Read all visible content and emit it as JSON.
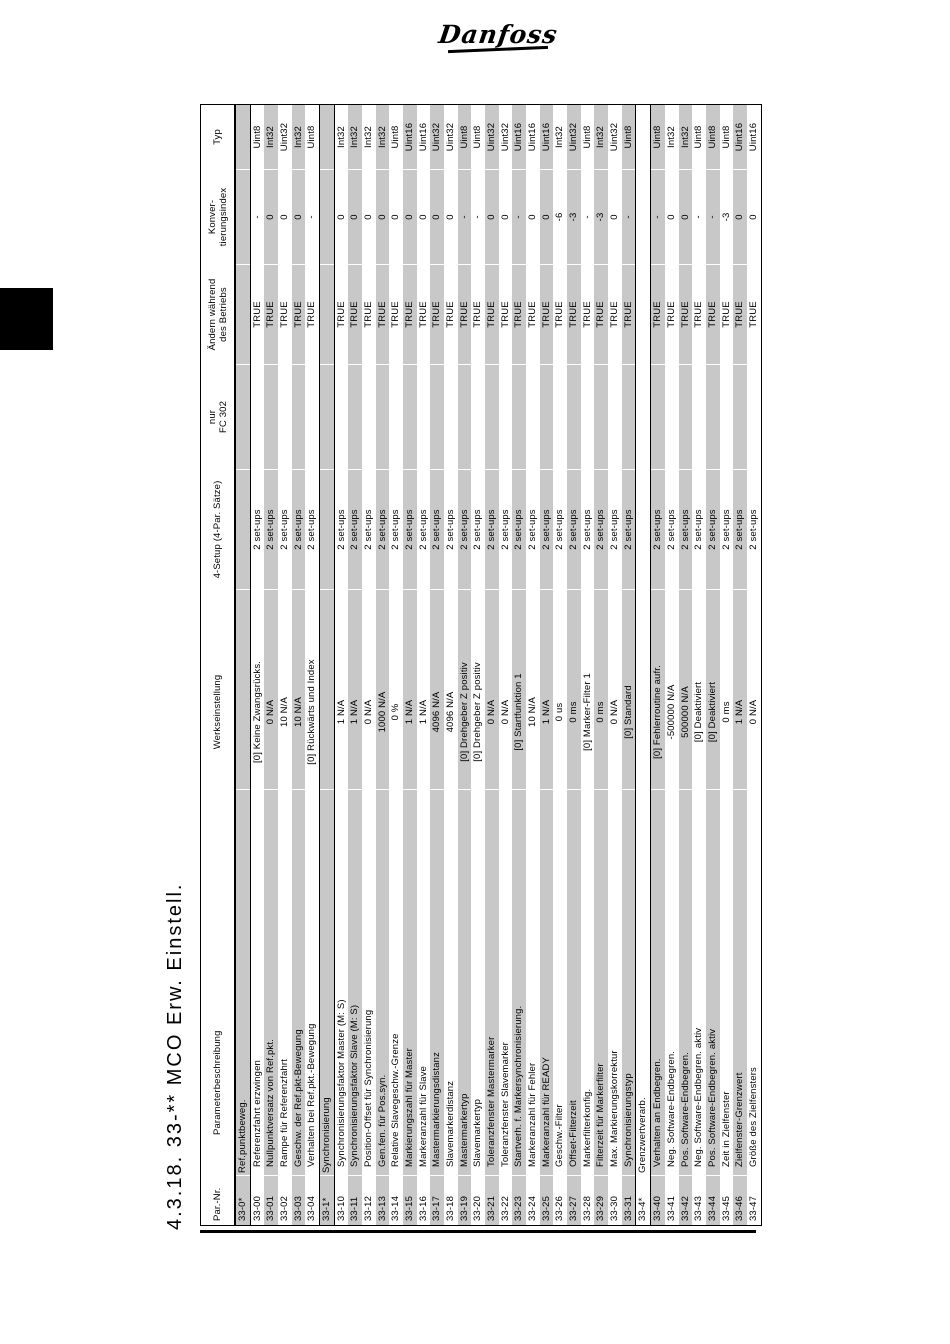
{
  "page": {
    "logo_text": "Danfoss",
    "section_title": "4.3.18. 33-** MCO Erw. Einstell."
  },
  "table": {
    "headers": {
      "par_nr": "Par.-Nr.",
      "beschreibung": "Parameterbeschreibung",
      "werkseinstellung": "Werkseinstellung",
      "setup": "4-Setup (4-Par. Sätze)",
      "fc302_line1": "nur",
      "fc302_line2": "FC 302",
      "aendern_line1": "Ändern während",
      "aendern_line2": "des Betriebs",
      "konv_line1": "Konver-",
      "konv_line2": "tierungsindex",
      "typ": "Typ"
    },
    "rows": [
      {
        "nr": "33-0*",
        "name": "Ref.punktbeweg.",
        "section": true,
        "werk": "",
        "setup": "",
        "fc302": "",
        "aendern": "",
        "konv": "",
        "typ": ""
      },
      {
        "nr": "33-00",
        "name": "Referenzfahrt erzwingen",
        "werk": "[0] Keine Zwangsrücks.",
        "setup": "2 set-ups",
        "fc302": "",
        "aendern": "TRUE",
        "konv": "-",
        "typ": "Uint8"
      },
      {
        "nr": "33-01",
        "name": "Nullpunktversatz von Ref.pkt.",
        "werk": "0 N/A",
        "setup": "2 set-ups",
        "fc302": "",
        "aendern": "TRUE",
        "konv": "0",
        "typ": "Int32"
      },
      {
        "nr": "33-02",
        "name": "Rampe für Referenzfahrt",
        "werk": "10 N/A",
        "setup": "2 set-ups",
        "fc302": "",
        "aendern": "TRUE",
        "konv": "0",
        "typ": "Uint32"
      },
      {
        "nr": "33-03",
        "name": "Geschw. der Ref.pkt-Bewegung",
        "werk": "10 N/A",
        "setup": "2 set-ups",
        "fc302": "",
        "aendern": "TRUE",
        "konv": "0",
        "typ": "Int32"
      },
      {
        "nr": "33-04",
        "name": "Verhalten bei Ref.pkt.-Bewegung",
        "werk": "[0] Rückwärts und Index",
        "setup": "2 set-ups",
        "fc302": "",
        "aendern": "TRUE",
        "konv": "-",
        "typ": "Uint8"
      },
      {
        "nr": "33-1*",
        "name": "Synchronisierung",
        "section": true,
        "werk": "",
        "setup": "",
        "fc302": "",
        "aendern": "",
        "konv": "",
        "typ": ""
      },
      {
        "nr": "33-10",
        "name": "Synchronisierungsfaktor Master (M: S)",
        "werk": "1 N/A",
        "setup": "2 set-ups",
        "fc302": "",
        "aendern": "TRUE",
        "konv": "0",
        "typ": "Int32"
      },
      {
        "nr": "33-11",
        "name": "Synchronisierungsfaktor Slave (M: S)",
        "werk": "1 N/A",
        "setup": "2 set-ups",
        "fc302": "",
        "aendern": "TRUE",
        "konv": "0",
        "typ": "Int32"
      },
      {
        "nr": "33-12",
        "name": "Position-Offset für Synchronisierung",
        "werk": "0 N/A",
        "setup": "2 set-ups",
        "fc302": "",
        "aendern": "TRUE",
        "konv": "0",
        "typ": "Int32"
      },
      {
        "nr": "33-13",
        "name": "Gen.fen. für Pos.syn.",
        "werk": "1000 N/A",
        "setup": "2 set-ups",
        "fc302": "",
        "aendern": "TRUE",
        "konv": "0",
        "typ": "Int32"
      },
      {
        "nr": "33-14",
        "name": "Relative Slavegeschw.-Grenze",
        "werk": "0 %",
        "setup": "2 set-ups",
        "fc302": "",
        "aendern": "TRUE",
        "konv": "0",
        "typ": "Uint8"
      },
      {
        "nr": "33-15",
        "name": "Markierungszahl für Master",
        "werk": "1 N/A",
        "setup": "2 set-ups",
        "fc302": "",
        "aendern": "TRUE",
        "konv": "0",
        "typ": "Uint16"
      },
      {
        "nr": "33-16",
        "name": "Markeranzahl für Slave",
        "werk": "1 N/A",
        "setup": "2 set-ups",
        "fc302": "",
        "aendern": "TRUE",
        "konv": "0",
        "typ": "Uint16"
      },
      {
        "nr": "33-17",
        "name": "Mastermarkierungsdistanz",
        "werk": "4096 N/A",
        "setup": "2 set-ups",
        "fc302": "",
        "aendern": "TRUE",
        "konv": "0",
        "typ": "Uint32"
      },
      {
        "nr": "33-18",
        "name": "Slavemarkerdistanz",
        "werk": "4096 N/A",
        "setup": "2 set-ups",
        "fc302": "",
        "aendern": "TRUE",
        "konv": "0",
        "typ": "Uint32"
      },
      {
        "nr": "33-19",
        "name": "Mastermarkertyp",
        "werk": "[0] Drehgeber Z positiv",
        "setup": "2 set-ups",
        "fc302": "",
        "aendern": "TRUE",
        "konv": "-",
        "typ": "Uint8"
      },
      {
        "nr": "33-20",
        "name": "Slavemarkertyp",
        "werk": "[0] Drehgeber Z positiv",
        "setup": "2 set-ups",
        "fc302": "",
        "aendern": "TRUE",
        "konv": "-",
        "typ": "Uint8"
      },
      {
        "nr": "33-21",
        "name": "Toleranzfenster Mastermarker",
        "werk": "0 N/A",
        "setup": "2 set-ups",
        "fc302": "",
        "aendern": "TRUE",
        "konv": "0",
        "typ": "Uint32"
      },
      {
        "nr": "33-22",
        "name": "Toleranzfenster Slavemarker",
        "werk": "0 N/A",
        "setup": "2 set-ups",
        "fc302": "",
        "aendern": "TRUE",
        "konv": "0",
        "typ": "Uint32"
      },
      {
        "nr": "33-23",
        "name": "Startverh. f. Markersynchronisierung.",
        "werk": "[0] Startfunktion 1",
        "setup": "2 set-ups",
        "fc302": "",
        "aendern": "TRUE",
        "konv": "-",
        "typ": "Uint16"
      },
      {
        "nr": "33-24",
        "name": "Markeranzahl für Fehler",
        "werk": "10 N/A",
        "setup": "2 set-ups",
        "fc302": "",
        "aendern": "TRUE",
        "konv": "0",
        "typ": "Uint16"
      },
      {
        "nr": "33-25",
        "name": "Markeranzahl für READY",
        "werk": "1 N/A",
        "setup": "2 set-ups",
        "fc302": "",
        "aendern": "TRUE",
        "konv": "0",
        "typ": "Uint16"
      },
      {
        "nr": "33-26",
        "name": "Geschw.-Filter",
        "werk": "0 us",
        "setup": "2 set-ups",
        "fc302": "",
        "aendern": "TRUE",
        "konv": "-6",
        "typ": "Int32"
      },
      {
        "nr": "33-27",
        "name": "Offset-Filterzeit",
        "werk": "0 ms",
        "setup": "2 set-ups",
        "fc302": "",
        "aendern": "TRUE",
        "konv": "-3",
        "typ": "Uint32"
      },
      {
        "nr": "33-28",
        "name": "Markerfilterkonfig.",
        "werk": "[0] Marker-Filter 1",
        "setup": "2 set-ups",
        "fc302": "",
        "aendern": "TRUE",
        "konv": "-",
        "typ": "Uint8"
      },
      {
        "nr": "33-29",
        "name": "Filterzeit für Markerfilter",
        "werk": "0 ms",
        "setup": "2 set-ups",
        "fc302": "",
        "aendern": "TRUE",
        "konv": "-3",
        "typ": "Int32"
      },
      {
        "nr": "33-30",
        "name": "Max. Markierungskorrektur",
        "werk": "0 N/A",
        "setup": "2 set-ups",
        "fc302": "",
        "aendern": "TRUE",
        "konv": "0",
        "typ": "Uint32"
      },
      {
        "nr": "33-31",
        "name": "Synchronisierungstyp",
        "werk": "[0] Standard",
        "setup": "2 set-ups",
        "fc302": "",
        "aendern": "TRUE",
        "konv": "-",
        "typ": "Uint8"
      },
      {
        "nr": "33-4*",
        "name": "Grenzwertverarb.",
        "section": true,
        "werk": "",
        "setup": "",
        "fc302": "",
        "aendern": "",
        "konv": "",
        "typ": ""
      },
      {
        "nr": "33-40",
        "name": "Verhalten an Endbegren.",
        "werk": "[0] Fehlerroutine aufr.",
        "setup": "2 set-ups",
        "fc302": "",
        "aendern": "TRUE",
        "konv": "-",
        "typ": "Uint8"
      },
      {
        "nr": "33-41",
        "name": "Neg. Software-Endbegren.",
        "werk": "-500000 N/A",
        "setup": "2 set-ups",
        "fc302": "",
        "aendern": "TRUE",
        "konv": "0",
        "typ": "Int32"
      },
      {
        "nr": "33-42",
        "name": "Pos. Software-Endbegren.",
        "werk": "500000 N/A",
        "setup": "2 set-ups",
        "fc302": "",
        "aendern": "TRUE",
        "konv": "0",
        "typ": "Int32"
      },
      {
        "nr": "33-43",
        "name": "Neg. Software-Endbegren. aktiv",
        "werk": "[0] Deaktiviert",
        "setup": "2 set-ups",
        "fc302": "",
        "aendern": "TRUE",
        "konv": "-",
        "typ": "Uint8"
      },
      {
        "nr": "33-44",
        "name": "Pos. Software-Endbegren. aktiv",
        "werk": "[0] Deaktiviert",
        "setup": "2 set-ups",
        "fc302": "",
        "aendern": "TRUE",
        "konv": "-",
        "typ": "Uint8"
      },
      {
        "nr": "33-45",
        "name": "Zeit in Zielfenster",
        "werk": "0 ms",
        "setup": "2 set-ups",
        "fc302": "",
        "aendern": "TRUE",
        "konv": "-3",
        "typ": "Uint8"
      },
      {
        "nr": "33-46",
        "name": "Zielfenster-Grenzwert",
        "werk": "1 N/A",
        "setup": "2 set-ups",
        "fc302": "",
        "aendern": "TRUE",
        "konv": "0",
        "typ": "Uint16"
      },
      {
        "nr": "33-47",
        "name": "Größe des Zielfensters",
        "werk": "0 N/A",
        "setup": "2 set-ups",
        "fc302": "",
        "aendern": "TRUE",
        "konv": "0",
        "typ": "Uint16"
      }
    ]
  }
}
